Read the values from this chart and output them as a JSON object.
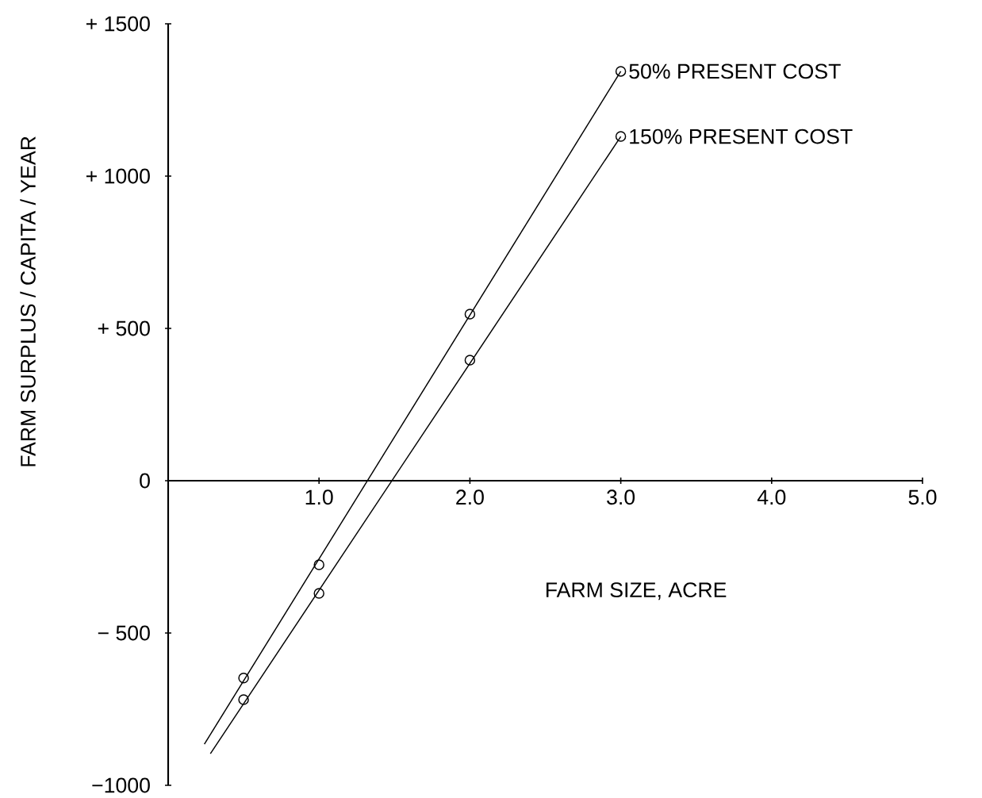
{
  "chart_data": {
    "type": "line",
    "xlabel": "FARM SIZE, ACRE",
    "ylabel": "FARM SURPLUS / CAPITA / YEAR",
    "xlim": [
      0,
      5
    ],
    "ylim": [
      -1000,
      1500
    ],
    "xticks": [
      {
        "value": 1,
        "label": "1.0"
      },
      {
        "value": 2,
        "label": "2.0"
      },
      {
        "value": 3,
        "label": "3.0"
      },
      {
        "value": 4,
        "label": "4.0"
      },
      {
        "value": 5,
        "label": "5.0"
      }
    ],
    "yticks": [
      {
        "value": -1000,
        "label": "−1000"
      },
      {
        "value": -500,
        "label": "− 500"
      },
      {
        "value": 0,
        "label": "0"
      },
      {
        "value": 500,
        "label": "+ 500"
      },
      {
        "value": 1000,
        "label": "+ 1000"
      },
      {
        "value": 1500,
        "label": "+ 1500"
      }
    ],
    "grid": false,
    "series": [
      {
        "name": "50% PRESENT COST",
        "color": "#000000",
        "x": [
          0.24,
          3.0
        ],
        "values": [
          -865,
          1344
        ],
        "marker": "none"
      },
      {
        "type": "scatter",
        "color": "#000000",
        "x": [
          0.5,
          1,
          2,
          3
        ],
        "values": [
          -648,
          -276,
          547,
          1344
        ],
        "marker": "circle"
      },
      {
        "name": "150% PRESENT COST",
        "color": "#000000",
        "x": [
          0.28,
          3.0
        ],
        "values": [
          -896,
          1130
        ],
        "marker": "none"
      },
      {
        "type": "scatter",
        "color": "#000000",
        "x": [
          0.5,
          1,
          2,
          3
        ],
        "values": [
          -719,
          -370,
          396,
          1130
        ],
        "marker": "circle"
      }
    ]
  }
}
